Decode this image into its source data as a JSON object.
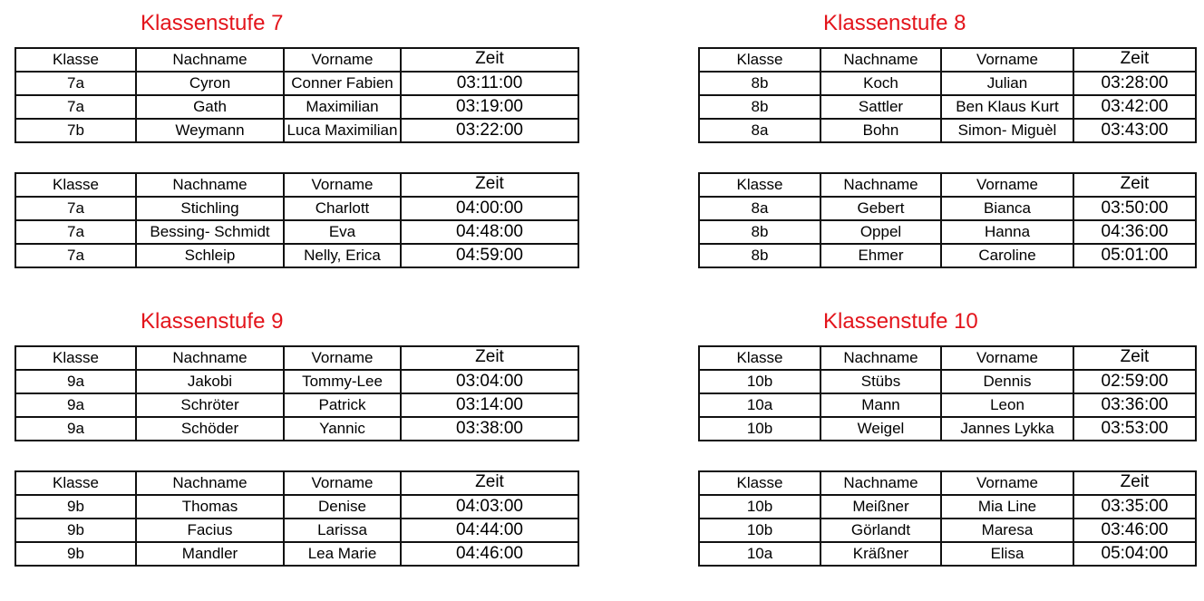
{
  "headers": [
    "Klasse",
    "Nachname",
    "Vorname",
    "Zeit"
  ],
  "sections": [
    {
      "title": "Klassenstufe 7",
      "tables": [
        [
          [
            "7a",
            "Cyron",
            "Conner Fabien",
            "03:11:00"
          ],
          [
            "7a",
            "Gath",
            "Maximilian",
            "03:19:00"
          ],
          [
            "7b",
            "Weymann",
            "Luca Maximilian",
            "03:22:00"
          ]
        ],
        [
          [
            "7a",
            "Stichling",
            "Charlott",
            "04:00:00"
          ],
          [
            "7a",
            "Bessing- Schmidt",
            "Eva",
            "04:48:00"
          ],
          [
            "7a",
            "Schleip",
            "Nelly, Erica",
            "04:59:00"
          ]
        ]
      ]
    },
    {
      "title": "Klassenstufe 8",
      "tables": [
        [
          [
            "8b",
            "Koch",
            "Julian",
            "03:28:00"
          ],
          [
            "8b",
            "Sattler",
            "Ben Klaus Kurt",
            "03:42:00"
          ],
          [
            "8a",
            "Bohn",
            "Simon- Miguèl",
            "03:43:00"
          ]
        ],
        [
          [
            "8a",
            "Gebert",
            "Bianca",
            "03:50:00"
          ],
          [
            "8b",
            "Oppel",
            "Hanna",
            "04:36:00"
          ],
          [
            "8b",
            "Ehmer",
            "Caroline",
            "05:01:00"
          ]
        ]
      ]
    },
    {
      "title": "Klassenstufe 9",
      "tables": [
        [
          [
            "9a",
            "Jakobi",
            "Tommy-Lee",
            "03:04:00"
          ],
          [
            "9a",
            "Schröter",
            "Patrick",
            "03:14:00"
          ],
          [
            "9a",
            "Schöder",
            "Yannic",
            "03:38:00"
          ]
        ],
        [
          [
            "9b",
            "Thomas",
            "Denise",
            "04:03:00"
          ],
          [
            "9b",
            "Facius",
            "Larissa",
            "04:44:00"
          ],
          [
            "9b",
            "Mandler",
            "Lea Marie",
            "04:46:00"
          ]
        ]
      ]
    },
    {
      "title": "Klassenstufe 10",
      "tables": [
        [
          [
            "10b",
            "Stübs",
            "Dennis",
            "02:59:00"
          ],
          [
            "10a",
            "Mann",
            "Leon",
            "03:36:00"
          ],
          [
            "10b",
            "Weigel",
            "Jannes Lykka",
            "03:53:00"
          ]
        ],
        [
          [
            "10b",
            "Meißner",
            "Mia Line",
            "03:35:00"
          ],
          [
            "10b",
            "Görlandt",
            "Maresa",
            "03:46:00"
          ],
          [
            "10a",
            "Kräßner",
            "Elisa",
            "05:04:00"
          ]
        ]
      ]
    }
  ]
}
